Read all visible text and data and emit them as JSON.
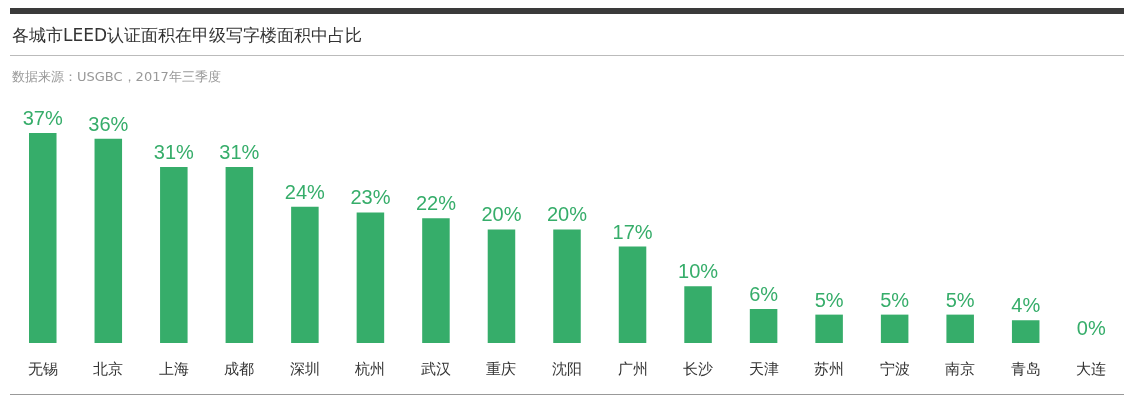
{
  "chart_data": {
    "type": "bar",
    "title": "各城市LEED认证面积在甲级写字楼面积中占比",
    "annotations": [
      "数据来源：USGBC，2017年三季度"
    ],
    "categories": [
      "无锡",
      "北京",
      "上海",
      "成都",
      "深圳",
      "杭州",
      "武汉",
      "重庆",
      "沈阳",
      "广州",
      "长沙",
      "天津",
      "苏州",
      "宁波",
      "南京",
      "青岛",
      "大连"
    ],
    "values": [
      37,
      36,
      31,
      31,
      24,
      23,
      22,
      20,
      20,
      17,
      10,
      6,
      5,
      5,
      5,
      4,
      0
    ],
    "value_labels": [
      "37%",
      "36%",
      "31%",
      "31%",
      "24%",
      "23%",
      "22%",
      "20%",
      "20%",
      "17%",
      "10%",
      "6%",
      "5%",
      "5%",
      "5%",
      "4%",
      "0%"
    ],
    "color": "#36ad6a"
  }
}
